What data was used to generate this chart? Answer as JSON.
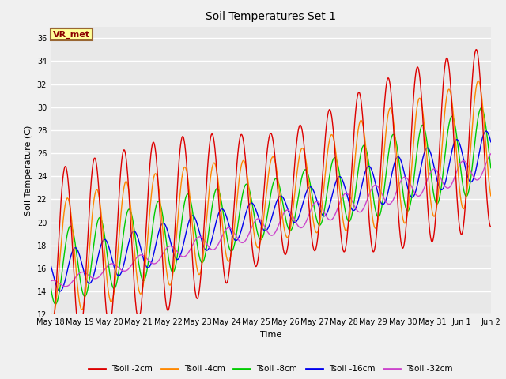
{
  "title": "Soil Temperatures Set 1",
  "xlabel": "Time",
  "ylabel": "Soil Temperature (C)",
  "ylim": [
    12,
    37
  ],
  "yticks": [
    12,
    14,
    16,
    18,
    20,
    22,
    24,
    26,
    28,
    30,
    32,
    34,
    36
  ],
  "fig_bg_color": "#f0f0f0",
  "plot_bg_color": "#e8e8e8",
  "grid_color": "#ffffff",
  "annotation_text": "VR_met",
  "annotation_bg": "#ffff99",
  "annotation_border": "#996633",
  "colors": {
    "2cm": "#dd0000",
    "4cm": "#ff8800",
    "8cm": "#00cc00",
    "16cm": "#0000ee",
    "32cm": "#cc44cc"
  },
  "legend_labels": [
    "Tsoil -2cm",
    "Tsoil -4cm",
    "Tsoil -8cm",
    "Tsoil -16cm",
    "Tsoil -32cm"
  ]
}
